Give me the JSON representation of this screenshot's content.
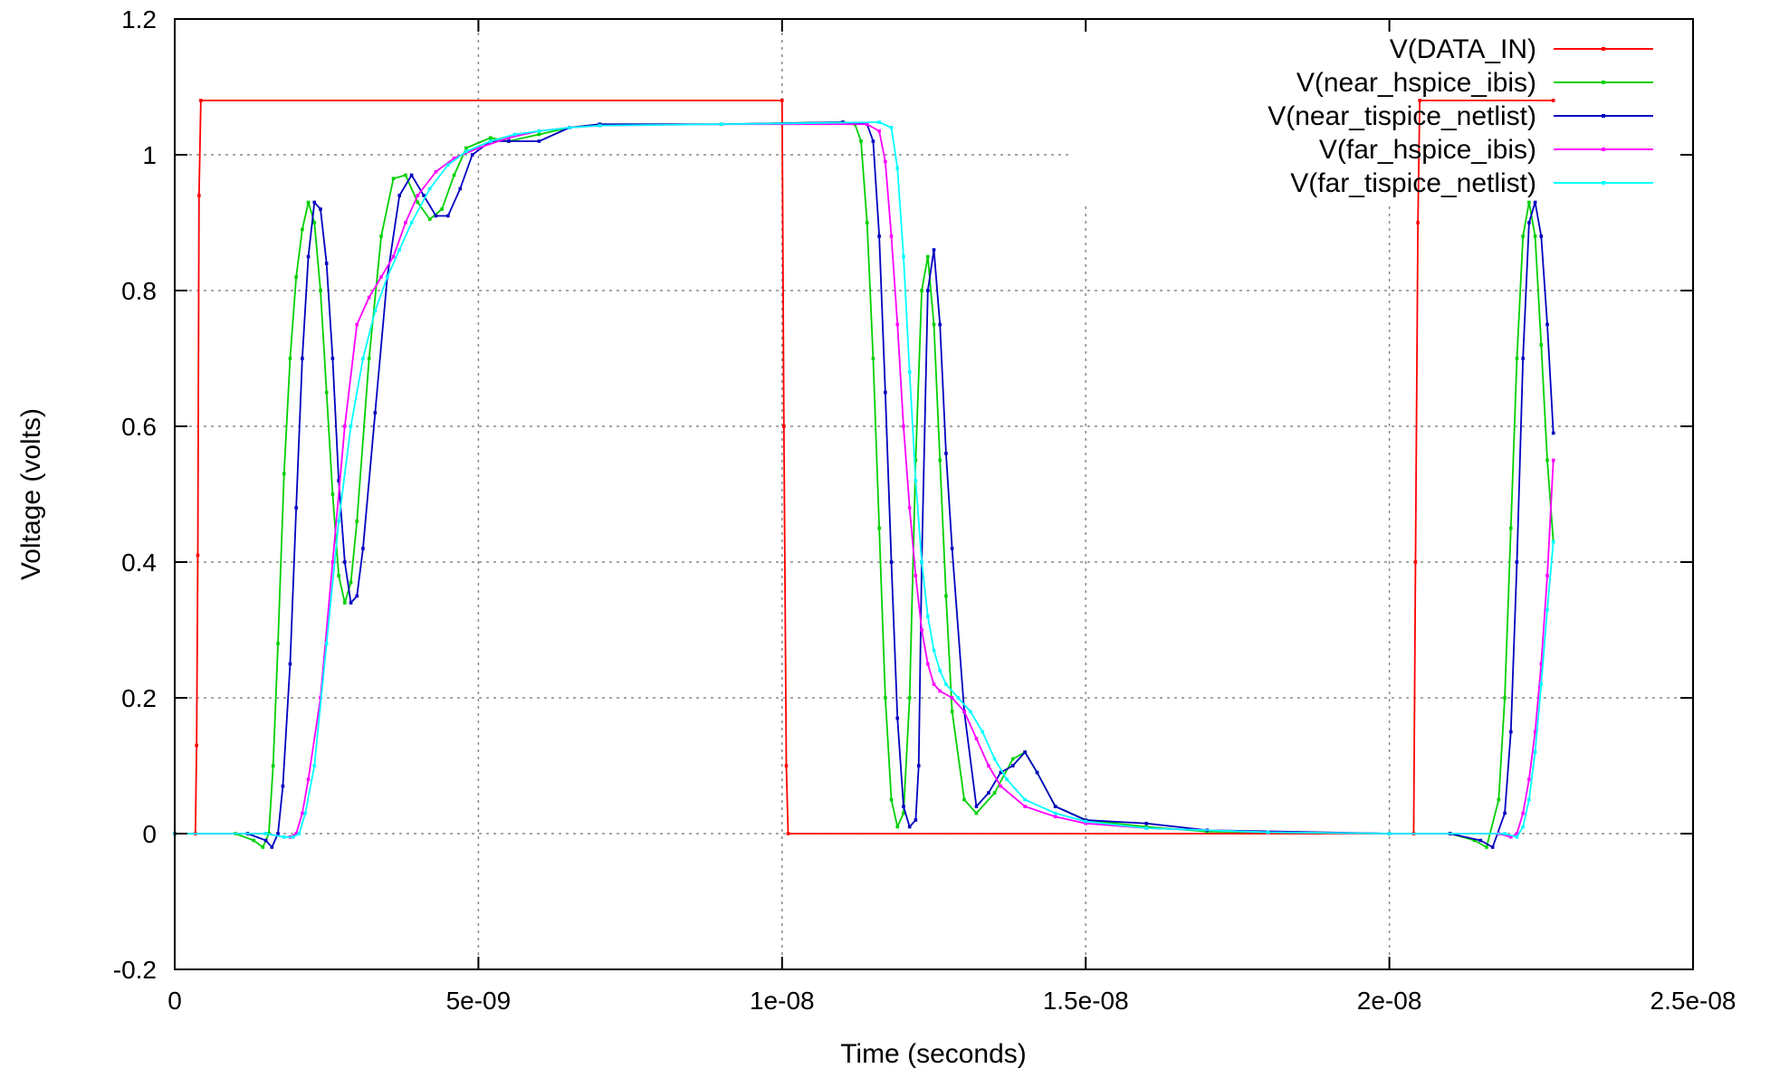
{
  "chart_data": {
    "type": "line",
    "title": "",
    "xlabel": "Time (seconds)",
    "ylabel": "Voltage (volts)",
    "xlim": [
      0,
      2.5e-08
    ],
    "ylim": [
      -0.2,
      1.2
    ],
    "x_ticks": [
      0,
      5e-09,
      1e-08,
      1.5e-08,
      2e-08,
      2.5e-08
    ],
    "x_tick_labels": [
      "0",
      "5e-09",
      "1e-08",
      "1.5e-08",
      "2e-08",
      "2.5e-08"
    ],
    "y_ticks": [
      -0.2,
      0,
      0.2,
      0.4,
      0.6,
      0.8,
      1,
      1.2
    ],
    "y_tick_labels": [
      "-0.2",
      "0",
      "0.2",
      "0.4",
      "0.6",
      "0.8",
      "1",
      "1.2"
    ],
    "grid": true,
    "legend_position": "top-right",
    "series": [
      {
        "name": "V(DATA_IN)",
        "color": "#ff0000",
        "points": [
          [
            0,
            0
          ],
          [
            3.4e-10,
            0
          ],
          [
            3.6e-10,
            0.13
          ],
          [
            3.8e-10,
            0.41
          ],
          [
            4e-10,
            0.94
          ],
          [
            4.3e-10,
            1.08
          ],
          [
            1e-08,
            1.08
          ],
          [
            1.003e-08,
            0.6
          ],
          [
            1.007e-08,
            0.1
          ],
          [
            1.01e-08,
            0
          ],
          [
            2.04e-08,
            0
          ],
          [
            2.043e-08,
            0.4
          ],
          [
            2.047e-08,
            0.9
          ],
          [
            2.05e-08,
            1.08
          ],
          [
            2.27e-08,
            1.08
          ]
        ]
      },
      {
        "name": "V(near_hspice_ibis)",
        "color": "#00d000",
        "points": [
          [
            0,
            0
          ],
          [
            1e-09,
            0
          ],
          [
            1.3e-09,
            -0.01
          ],
          [
            1.45e-09,
            -0.02
          ],
          [
            1.55e-09,
            0.0
          ],
          [
            1.62e-09,
            0.1
          ],
          [
            1.7e-09,
            0.28
          ],
          [
            1.8e-09,
            0.53
          ],
          [
            1.9e-09,
            0.7
          ],
          [
            2e-09,
            0.82
          ],
          [
            2.1e-09,
            0.89
          ],
          [
            2.2e-09,
            0.93
          ],
          [
            2.3e-09,
            0.9
          ],
          [
            2.4e-09,
            0.8
          ],
          [
            2.5e-09,
            0.65
          ],
          [
            2.6e-09,
            0.5
          ],
          [
            2.7e-09,
            0.38
          ],
          [
            2.8e-09,
            0.34
          ],
          [
            2.9e-09,
            0.37
          ],
          [
            3e-09,
            0.46
          ],
          [
            3.2e-09,
            0.7
          ],
          [
            3.4e-09,
            0.88
          ],
          [
            3.6e-09,
            0.965
          ],
          [
            3.8e-09,
            0.97
          ],
          [
            4e-09,
            0.93
          ],
          [
            4.2e-09,
            0.905
          ],
          [
            4.4e-09,
            0.92
          ],
          [
            4.6e-09,
            0.97
          ],
          [
            4.8e-09,
            1.01
          ],
          [
            5.2e-09,
            1.025
          ],
          [
            5.5e-09,
            1.02
          ],
          [
            6e-09,
            1.03
          ],
          [
            6.5e-09,
            1.04
          ],
          [
            7e-09,
            1.045
          ],
          [
            9e-09,
            1.045
          ],
          [
            1.1e-08,
            1.048
          ],
          [
            1.12e-08,
            1.045
          ],
          [
            1.13e-08,
            1.02
          ],
          [
            1.14e-08,
            0.9
          ],
          [
            1.15e-08,
            0.7
          ],
          [
            1.16e-08,
            0.45
          ],
          [
            1.17e-08,
            0.2
          ],
          [
            1.18e-08,
            0.05
          ],
          [
            1.19e-08,
            0.01
          ],
          [
            1.2e-08,
            0.03
          ],
          [
            1.21e-08,
            0.2
          ],
          [
            1.22e-08,
            0.55
          ],
          [
            1.23e-08,
            0.8
          ],
          [
            1.24e-08,
            0.85
          ],
          [
            1.25e-08,
            0.75
          ],
          [
            1.26e-08,
            0.55
          ],
          [
            1.27e-08,
            0.35
          ],
          [
            1.28e-08,
            0.18
          ],
          [
            1.3e-08,
            0.05
          ],
          [
            1.32e-08,
            0.03
          ],
          [
            1.35e-08,
            0.06
          ],
          [
            1.38e-08,
            0.11
          ],
          [
            1.4e-08,
            0.12
          ],
          [
            1.42e-08,
            0.09
          ],
          [
            1.45e-08,
            0.04
          ],
          [
            1.5e-08,
            0.02
          ],
          [
            1.6e-08,
            0.01
          ],
          [
            1.7e-08,
            0.003
          ],
          [
            2e-08,
            0
          ],
          [
            2.1e-08,
            0
          ],
          [
            2.14e-08,
            -0.01
          ],
          [
            2.16e-08,
            -0.02
          ],
          [
            2.18e-08,
            0.05
          ],
          [
            2.19e-08,
            0.2
          ],
          [
            2.2e-08,
            0.45
          ],
          [
            2.21e-08,
            0.7
          ],
          [
            2.22e-08,
            0.88
          ],
          [
            2.23e-08,
            0.93
          ],
          [
            2.24e-08,
            0.88
          ],
          [
            2.25e-08,
            0.72
          ],
          [
            2.26e-08,
            0.55
          ],
          [
            2.27e-08,
            0.43
          ]
        ]
      },
      {
        "name": "V(near_tispice_netlist)",
        "color": "#0000c0",
        "points": [
          [
            0,
            0
          ],
          [
            1.2e-09,
            0
          ],
          [
            1.5e-09,
            -0.01
          ],
          [
            1.6e-09,
            -0.02
          ],
          [
            1.7e-09,
            0.0
          ],
          [
            1.78e-09,
            0.07
          ],
          [
            1.9e-09,
            0.25
          ],
          [
            2e-09,
            0.48
          ],
          [
            2.1e-09,
            0.7
          ],
          [
            2.2e-09,
            0.85
          ],
          [
            2.3e-09,
            0.93
          ],
          [
            2.4e-09,
            0.92
          ],
          [
            2.5e-09,
            0.84
          ],
          [
            2.6e-09,
            0.7
          ],
          [
            2.7e-09,
            0.52
          ],
          [
            2.8e-09,
            0.4
          ],
          [
            2.9e-09,
            0.34
          ],
          [
            3e-09,
            0.35
          ],
          [
            3.1e-09,
            0.42
          ],
          [
            3.3e-09,
            0.62
          ],
          [
            3.5e-09,
            0.82
          ],
          [
            3.7e-09,
            0.94
          ],
          [
            3.9e-09,
            0.97
          ],
          [
            4.1e-09,
            0.94
          ],
          [
            4.3e-09,
            0.91
          ],
          [
            4.5e-09,
            0.91
          ],
          [
            4.7e-09,
            0.95
          ],
          [
            4.9e-09,
            1.0
          ],
          [
            5.2e-09,
            1.02
          ],
          [
            5.5e-09,
            1.02
          ],
          [
            6e-09,
            1.02
          ],
          [
            6.5e-09,
            1.04
          ],
          [
            7e-09,
            1.045
          ],
          [
            9e-09,
            1.045
          ],
          [
            1.1e-08,
            1.048
          ],
          [
            1.14e-08,
            1.045
          ],
          [
            1.15e-08,
            1.02
          ],
          [
            1.16e-08,
            0.88
          ],
          [
            1.17e-08,
            0.65
          ],
          [
            1.18e-08,
            0.4
          ],
          [
            1.19e-08,
            0.17
          ],
          [
            1.2e-08,
            0.04
          ],
          [
            1.21e-08,
            0.01
          ],
          [
            1.22e-08,
            0.02
          ],
          [
            1.225e-08,
            0.1
          ],
          [
            1.23e-08,
            0.4
          ],
          [
            1.24e-08,
            0.8
          ],
          [
            1.25e-08,
            0.86
          ],
          [
            1.26e-08,
            0.75
          ],
          [
            1.27e-08,
            0.56
          ],
          [
            1.28e-08,
            0.42
          ],
          [
            1.3e-08,
            0.18
          ],
          [
            1.32e-08,
            0.04
          ],
          [
            1.34e-08,
            0.06
          ],
          [
            1.36e-08,
            0.09
          ],
          [
            1.38e-08,
            0.1
          ],
          [
            1.4e-08,
            0.12
          ],
          [
            1.42e-08,
            0.09
          ],
          [
            1.45e-08,
            0.04
          ],
          [
            1.5e-08,
            0.02
          ],
          [
            1.6e-08,
            0.015
          ],
          [
            1.7e-08,
            0.005
          ],
          [
            2e-08,
            0
          ],
          [
            2.1e-08,
            0
          ],
          [
            2.15e-08,
            -0.01
          ],
          [
            2.17e-08,
            -0.02
          ],
          [
            2.19e-08,
            0.03
          ],
          [
            2.2e-08,
            0.15
          ],
          [
            2.21e-08,
            0.4
          ],
          [
            2.22e-08,
            0.7
          ],
          [
            2.23e-08,
            0.9
          ],
          [
            2.24e-08,
            0.93
          ],
          [
            2.25e-08,
            0.88
          ],
          [
            2.26e-08,
            0.75
          ],
          [
            2.27e-08,
            0.59
          ]
        ]
      },
      {
        "name": "V(far_hspice_ibis)",
        "color": "#ff00ff",
        "points": [
          [
            0,
            0
          ],
          [
            1.5e-09,
            0
          ],
          [
            1.8e-09,
            -0.005
          ],
          [
            1.9e-09,
            -0.005
          ],
          [
            2e-09,
            0.0
          ],
          [
            2.1e-09,
            0.03
          ],
          [
            2.2e-09,
            0.08
          ],
          [
            2.4e-09,
            0.2
          ],
          [
            2.6e-09,
            0.4
          ],
          [
            2.8e-09,
            0.6
          ],
          [
            3e-09,
            0.75
          ],
          [
            3.2e-09,
            0.79
          ],
          [
            3.4e-09,
            0.82
          ],
          [
            3.6e-09,
            0.85
          ],
          [
            3.8e-09,
            0.9
          ],
          [
            4e-09,
            0.94
          ],
          [
            4.3e-09,
            0.975
          ],
          [
            4.6e-09,
            0.995
          ],
          [
            5e-09,
            1.01
          ],
          [
            5.5e-09,
            1.025
          ],
          [
            6e-09,
            1.035
          ],
          [
            6.5e-09,
            1.04
          ],
          [
            7e-09,
            1.043
          ],
          [
            9e-09,
            1.045
          ],
          [
            1.14e-08,
            1.045
          ],
          [
            1.16e-08,
            1.035
          ],
          [
            1.17e-08,
            0.99
          ],
          [
            1.18e-08,
            0.88
          ],
          [
            1.19e-08,
            0.75
          ],
          [
            1.2e-08,
            0.6
          ],
          [
            1.21e-08,
            0.48
          ],
          [
            1.22e-08,
            0.38
          ],
          [
            1.23e-08,
            0.3
          ],
          [
            1.24e-08,
            0.25
          ],
          [
            1.25e-08,
            0.22
          ],
          [
            1.26e-08,
            0.21
          ],
          [
            1.28e-08,
            0.2
          ],
          [
            1.3e-08,
            0.18
          ],
          [
            1.32e-08,
            0.14
          ],
          [
            1.34e-08,
            0.1
          ],
          [
            1.36e-08,
            0.07
          ],
          [
            1.4e-08,
            0.04
          ],
          [
            1.45e-08,
            0.025
          ],
          [
            1.5e-08,
            0.015
          ],
          [
            1.6e-08,
            0.008
          ],
          [
            1.8e-08,
            0.002
          ],
          [
            2e-08,
            0
          ],
          [
            2.18e-08,
            0
          ],
          [
            2.2e-08,
            -0.005
          ],
          [
            2.21e-08,
            0.0
          ],
          [
            2.22e-08,
            0.03
          ],
          [
            2.23e-08,
            0.08
          ],
          [
            2.24e-08,
            0.15
          ],
          [
            2.25e-08,
            0.25
          ],
          [
            2.26e-08,
            0.38
          ],
          [
            2.27e-08,
            0.55
          ]
        ]
      },
      {
        "name": "V(far_tispice_netlist)",
        "color": "#00ffff",
        "points": [
          [
            0,
            0
          ],
          [
            1.5e-09,
            0
          ],
          [
            1.8e-09,
            -0.005
          ],
          [
            1.95e-09,
            -0.005
          ],
          [
            2.05e-09,
            0.0
          ],
          [
            2.15e-09,
            0.03
          ],
          [
            2.3e-09,
            0.1
          ],
          [
            2.5e-09,
            0.28
          ],
          [
            2.7e-09,
            0.46
          ],
          [
            2.9e-09,
            0.6
          ],
          [
            3.1e-09,
            0.7
          ],
          [
            3.3e-09,
            0.77
          ],
          [
            3.5e-09,
            0.82
          ],
          [
            3.7e-09,
            0.86
          ],
          [
            3.9e-09,
            0.9
          ],
          [
            4.2e-09,
            0.95
          ],
          [
            4.5e-09,
            0.985
          ],
          [
            4.8e-09,
            1.005
          ],
          [
            5.2e-09,
            1.02
          ],
          [
            5.6e-09,
            1.03
          ],
          [
            6e-09,
            1.035
          ],
          [
            6.5e-09,
            1.04
          ],
          [
            7e-09,
            1.043
          ],
          [
            9e-09,
            1.045
          ],
          [
            1.16e-08,
            1.048
          ],
          [
            1.18e-08,
            1.04
          ],
          [
            1.19e-08,
            0.98
          ],
          [
            1.2e-08,
            0.85
          ],
          [
            1.21e-08,
            0.68
          ],
          [
            1.22e-08,
            0.52
          ],
          [
            1.23e-08,
            0.4
          ],
          [
            1.24e-08,
            0.32
          ],
          [
            1.25e-08,
            0.27
          ],
          [
            1.26e-08,
            0.24
          ],
          [
            1.27e-08,
            0.22
          ],
          [
            1.29e-08,
            0.2
          ],
          [
            1.31e-08,
            0.18
          ],
          [
            1.33e-08,
            0.15
          ],
          [
            1.35e-08,
            0.11
          ],
          [
            1.37e-08,
            0.08
          ],
          [
            1.4e-08,
            0.05
          ],
          [
            1.45e-08,
            0.03
          ],
          [
            1.5e-08,
            0.018
          ],
          [
            1.6e-08,
            0.008
          ],
          [
            1.8e-08,
            0.002
          ],
          [
            2e-08,
            0
          ],
          [
            2.19e-08,
            0
          ],
          [
            2.21e-08,
            -0.005
          ],
          [
            2.22e-08,
            0.01
          ],
          [
            2.23e-08,
            0.05
          ],
          [
            2.24e-08,
            0.12
          ],
          [
            2.25e-08,
            0.22
          ],
          [
            2.26e-08,
            0.33
          ],
          [
            2.27e-08,
            0.43
          ]
        ]
      }
    ]
  }
}
